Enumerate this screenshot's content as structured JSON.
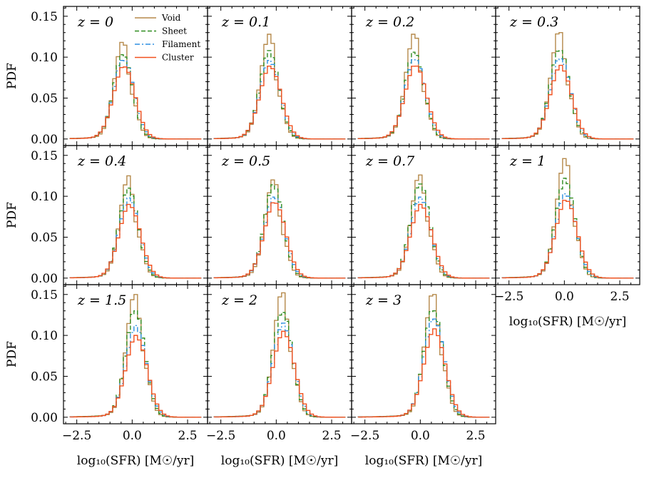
{
  "chart_data": {
    "type": "step-histogram",
    "ylabel": "PDF",
    "xlabel": "log₁₀(SFR) [M☉/yr]",
    "xlim": [
      -3.1,
      3.4
    ],
    "ylim": [
      -0.008,
      0.162
    ],
    "xticks": [
      -2.5,
      0.0,
      2.5
    ],
    "xtick_labels": [
      "−2.5",
      "0.0",
      "2.5"
    ],
    "yticks": [
      0.0,
      0.05,
      0.1,
      0.15
    ],
    "ytick_labels": [
      "0.00",
      "0.05",
      "0.10",
      "0.15"
    ],
    "legend": {
      "placement": "top-right of first panel",
      "entries": [
        {
          "name": "Void",
          "color": "#b5894a",
          "style": "solid"
        },
        {
          "name": "Sheet",
          "color": "#2e8b1e",
          "style": "dashed"
        },
        {
          "name": "Filament",
          "color": "#2f8fe0",
          "style": "dashdot"
        },
        {
          "name": "Cluster",
          "color": "#f2501e",
          "style": "solid"
        }
      ]
    },
    "bin_width": 0.16,
    "panels": [
      {
        "label": "z = 0",
        "center": -0.4,
        "peaks": [
          0.118,
          0.103,
          0.096,
          0.088
        ]
      },
      {
        "label": "z = 0.1",
        "center": -0.3,
        "peaks": [
          0.128,
          0.108,
          0.096,
          0.089
        ]
      },
      {
        "label": "z = 0.2",
        "center": -0.25,
        "peaks": [
          0.128,
          0.106,
          0.097,
          0.089
        ]
      },
      {
        "label": "z = 0.3",
        "center": -0.2,
        "peaks": [
          0.13,
          0.108,
          0.098,
          0.09
        ]
      },
      {
        "label": "z = 0.4",
        "center": -0.15,
        "peaks": [
          0.125,
          0.11,
          0.098,
          0.09
        ]
      },
      {
        "label": "z = 0.5",
        "center": -0.1,
        "peaks": [
          0.12,
          0.114,
          0.099,
          0.092
        ]
      },
      {
        "label": "z = 0.7",
        "center": 0.0,
        "peaks": [
          0.126,
          0.115,
          0.099,
          0.09
        ]
      },
      {
        "label": "z = 1",
        "center": 0.05,
        "peaks": [
          0.146,
          0.122,
          0.103,
          0.095
        ]
      },
      {
        "label": "z = 1.5",
        "center": 0.15,
        "peaks": [
          0.15,
          0.13,
          0.112,
          0.1
        ]
      },
      {
        "label": "z = 2",
        "center": 0.3,
        "peaks": [
          0.152,
          0.128,
          0.115,
          0.105
        ]
      },
      {
        "label": "z = 3",
        "center": 0.6,
        "peaks": [
          0.15,
          0.13,
          0.12,
          0.108
        ]
      }
    ]
  }
}
